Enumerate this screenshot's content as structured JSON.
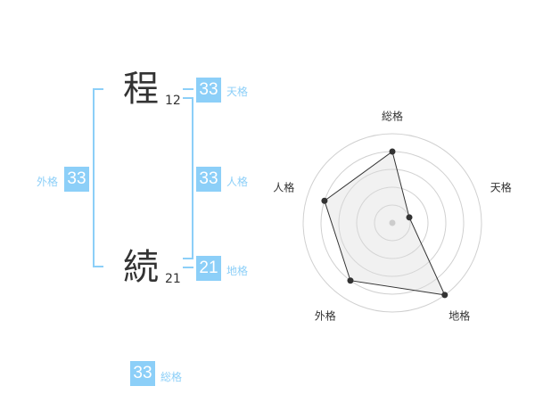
{
  "name": {
    "chars": [
      {
        "char": "程",
        "strokes": "12"
      },
      {
        "char": "続",
        "strokes": "21"
      }
    ]
  },
  "kaku": {
    "tenkaku": {
      "value": "33",
      "label": "天格"
    },
    "jinkaku": {
      "value": "33",
      "label": "人格"
    },
    "chikaku": {
      "value": "21",
      "label": "地格"
    },
    "gaikaku": {
      "value": "33",
      "label": "外格"
    },
    "soukaku": {
      "value": "33",
      "label": "総格"
    }
  },
  "accent_color": "#8ccff8",
  "chart_data": {
    "type": "radar",
    "categories": [
      "総格",
      "天格",
      "地格",
      "外格",
      "人格"
    ],
    "values": [
      4,
      1,
      5,
      4,
      4
    ],
    "rlim": [
      0,
      5
    ],
    "grid": true
  }
}
